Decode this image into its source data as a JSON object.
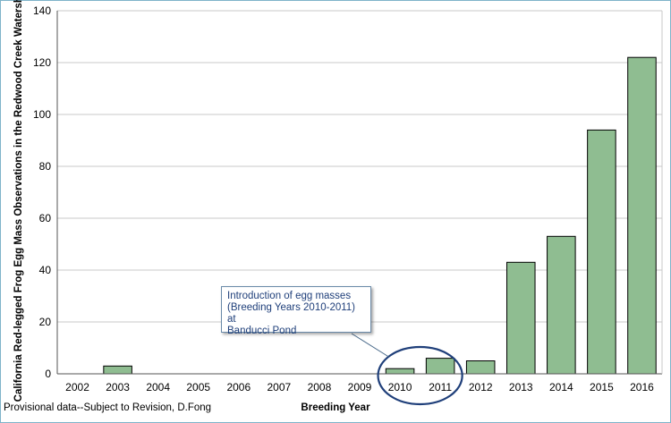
{
  "chart_data": {
    "type": "bar",
    "title": "",
    "xlabel": "Breeding Year",
    "ylabel": "California Red-legged Frog Egg Mass Observations in the Redwood Creek Watershed",
    "categories": [
      "2002",
      "2003",
      "2004",
      "2005",
      "2006",
      "2007",
      "2008",
      "2009",
      "2010",
      "2011",
      "2012",
      "2013",
      "2014",
      "2015",
      "2016"
    ],
    "values": [
      0,
      3,
      0,
      0,
      0,
      0,
      0,
      0,
      2,
      6,
      5,
      43,
      53,
      94,
      122
    ],
    "ylim": [
      0,
      140
    ],
    "yticks": [
      0,
      20,
      40,
      60,
      80,
      100,
      120,
      140
    ],
    "grid": true,
    "bar_color": "#8fbd91",
    "annotation": {
      "lines": [
        "Introduction of egg masses",
        "(Breeding Years 2010-2011) at",
        "Banducci Pond"
      ],
      "target": [
        "2010",
        "2011"
      ],
      "color": "#1f3f7a"
    }
  },
  "footnote": "Provisional data--Subject to Revision, D.Fong"
}
